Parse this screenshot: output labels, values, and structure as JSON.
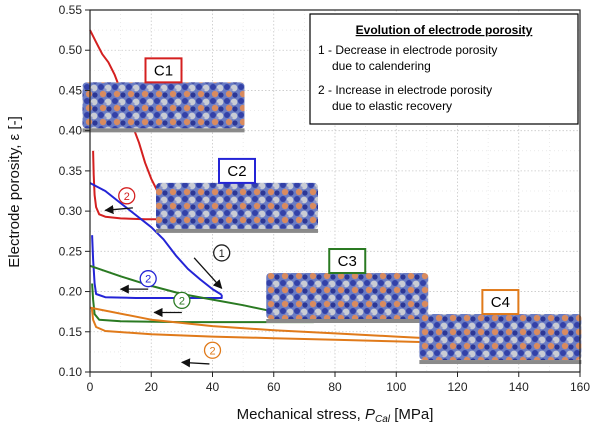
{
  "chart_data": {
    "type": "line",
    "xlabel_main": "Mechanical stress, ",
    "xlabel_symbol": "P",
    "xlabel_sub": "Cal",
    "xlabel_unit": " [MPa]",
    "ylabel": "Electrode porosity, ε [-]",
    "xlim": [
      0,
      160
    ],
    "ylim": [
      0.1,
      0.55
    ],
    "xticks": [
      "0",
      "20",
      "40",
      "60",
      "80",
      "100",
      "120",
      "140",
      "160"
    ],
    "yticks": [
      "0.10",
      "0.15",
      "0.20",
      "0.25",
      "0.30",
      "0.35",
      "0.40",
      "0.45",
      "0.50",
      "0.55"
    ],
    "grid": true,
    "series": [
      {
        "name": "C1",
        "color": "#d42020",
        "loading": [
          [
            0,
            0.525
          ],
          [
            2,
            0.51
          ],
          [
            4,
            0.495
          ],
          [
            6,
            0.485
          ],
          [
            8,
            0.47
          ],
          [
            10,
            0.45
          ],
          [
            12,
            0.425
          ],
          [
            14,
            0.405
          ],
          [
            16,
            0.385
          ],
          [
            18,
            0.36
          ],
          [
            20,
            0.34
          ],
          [
            22,
            0.325
          ],
          [
            24,
            0.315
          ]
        ],
        "unloading": [
          [
            24,
            0.315
          ],
          [
            24,
            0.29
          ],
          [
            18,
            0.29
          ],
          [
            10,
            0.291
          ],
          [
            5,
            0.293
          ],
          [
            3,
            0.296
          ],
          [
            2,
            0.305
          ],
          [
            1.5,
            0.32
          ],
          [
            1.2,
            0.345
          ],
          [
            1,
            0.375
          ]
        ]
      },
      {
        "name": "C2",
        "color": "#2424d6",
        "loading": [
          [
            0,
            0.335
          ],
          [
            5,
            0.325
          ],
          [
            10,
            0.31
          ],
          [
            15,
            0.295
          ],
          [
            20,
            0.28
          ],
          [
            24,
            0.265
          ],
          [
            28,
            0.245
          ],
          [
            32,
            0.228
          ],
          [
            36,
            0.215
          ],
          [
            40,
            0.203
          ],
          [
            43,
            0.196
          ]
        ],
        "unloading": [
          [
            43,
            0.196
          ],
          [
            43,
            0.192
          ],
          [
            30,
            0.192
          ],
          [
            15,
            0.192
          ],
          [
            5,
            0.193
          ],
          [
            2,
            0.197
          ],
          [
            1.5,
            0.21
          ],
          [
            1,
            0.24
          ],
          [
            0.7,
            0.27
          ]
        ]
      },
      {
        "name": "C3",
        "color": "#2a7a22",
        "loading": [
          [
            0,
            0.232
          ],
          [
            10,
            0.219
          ],
          [
            20,
            0.207
          ],
          [
            30,
            0.197
          ],
          [
            40,
            0.19
          ],
          [
            50,
            0.183
          ],
          [
            60,
            0.175
          ],
          [
            68,
            0.168
          ],
          [
            73,
            0.164
          ]
        ],
        "unloading": [
          [
            73,
            0.164
          ],
          [
            73,
            0.162
          ],
          [
            50,
            0.162
          ],
          [
            30,
            0.162
          ],
          [
            10,
            0.163
          ],
          [
            3,
            0.165
          ],
          [
            1.5,
            0.172
          ],
          [
            1,
            0.19
          ],
          [
            0.7,
            0.21
          ]
        ]
      },
      {
        "name": "C4",
        "color": "#e07a1a",
        "loading": [
          [
            0,
            0.18
          ],
          [
            20,
            0.165
          ],
          [
            40,
            0.157
          ],
          [
            60,
            0.152
          ],
          [
            80,
            0.148
          ],
          [
            100,
            0.144
          ],
          [
            120,
            0.14
          ],
          [
            140,
            0.137
          ],
          [
            160,
            0.133
          ]
        ],
        "unloading": [
          [
            160,
            0.133
          ],
          [
            140,
            0.134
          ],
          [
            120,
            0.136
          ],
          [
            100,
            0.138
          ],
          [
            80,
            0.14
          ],
          [
            60,
            0.142
          ],
          [
            40,
            0.144
          ],
          [
            20,
            0.147
          ],
          [
            5,
            0.151
          ],
          [
            2,
            0.156
          ],
          [
            1,
            0.165
          ],
          [
            0.6,
            0.18
          ]
        ]
      }
    ],
    "legend": {
      "title": "Evolution of electrode porosity",
      "lines": [
        "1 - Decrease in electrode porosity",
        "due to calendering",
        "2 - Increase in electrode porosity",
        "due to elastic recovery"
      ],
      "placement": "top-right"
    },
    "samples": [
      {
        "label": "C1",
        "color": "#d42020",
        "at": [
          24,
          0.47
        ]
      },
      {
        "label": "C2",
        "color": "#2424d6",
        "at": [
          48,
          0.345
        ]
      },
      {
        "label": "C3",
        "color": "#2a7a22",
        "at": [
          84,
          0.233
        ]
      },
      {
        "label": "C4",
        "color": "#e07a1a",
        "at": [
          134,
          0.182
        ]
      }
    ],
    "annotations": [
      {
        "text": "2",
        "color": "#d42020",
        "circle": [
          12,
          0.319
        ],
        "arrow": [
          [
            14,
            0.304
          ],
          [
            5,
            0.301
          ]
        ]
      },
      {
        "text": "1",
        "color": "#222222",
        "circle": [
          43,
          0.248
        ],
        "arrow": [
          [
            34,
            0.242
          ],
          [
            43,
            0.204
          ]
        ]
      },
      {
        "text": "2",
        "color": "#2424d6",
        "circle": [
          19,
          0.216
        ],
        "arrow": [
          [
            19,
            0.203
          ],
          [
            10,
            0.203
          ]
        ]
      },
      {
        "text": "2",
        "color": "#2a7a22",
        "circle": [
          30,
          0.189
        ],
        "arrow": [
          [
            30,
            0.174
          ],
          [
            21,
            0.174
          ]
        ]
      },
      {
        "text": "2",
        "color": "#e07a1a",
        "circle": [
          40,
          0.127
        ],
        "arrow": [
          [
            39,
            0.11
          ],
          [
            30,
            0.112
          ]
        ]
      }
    ]
  }
}
